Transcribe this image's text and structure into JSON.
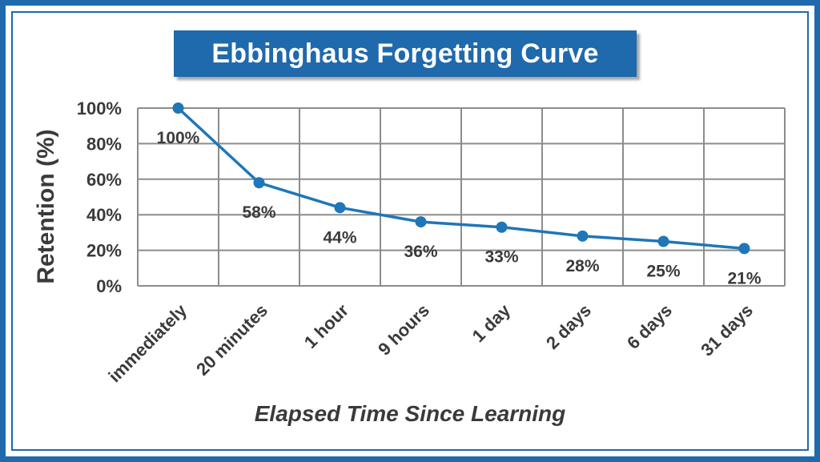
{
  "chart_data": {
    "type": "line",
    "title": "Ebbinghaus Forgetting Curve",
    "xlabel": "Elapsed Time Since Learning",
    "ylabel": "Retention (%)",
    "categories": [
      "immediately",
      "20 minutes",
      "1 hour",
      "9 hours",
      "1 day",
      "2 days",
      "6 days",
      "31 days"
    ],
    "values": [
      100,
      58,
      44,
      36,
      33,
      28,
      25,
      21
    ],
    "data_labels": [
      "100%",
      "58%",
      "44%",
      "36%",
      "33%",
      "28%",
      "25%",
      "21%"
    ],
    "y_ticks": [
      0,
      20,
      40,
      60,
      80,
      100
    ],
    "y_tick_labels": [
      "0%",
      "20%",
      "40%",
      "60%",
      "80%",
      "100%"
    ],
    "ylim": [
      0,
      100
    ],
    "grid": true,
    "legend": "none",
    "colors": {
      "line": "#1f76b8",
      "marker": "#1f76b8",
      "title_box": "#1f69ad",
      "frame": "#1f69ad",
      "grid": "#8c8c8c",
      "text": "#3a3a3a"
    }
  }
}
